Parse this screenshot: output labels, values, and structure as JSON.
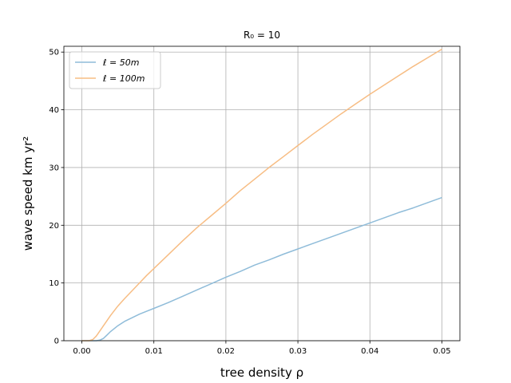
{
  "chart_data": {
    "type": "line",
    "title": "R₀ = 10",
    "xlabel": "tree density ρ",
    "ylabel": "wave speed km yr²",
    "xlim": [
      -0.0025,
      0.0525
    ],
    "ylim": [
      0,
      51
    ],
    "xticks": [
      0.0,
      0.01,
      0.02,
      0.03,
      0.04,
      0.05
    ],
    "xtick_labels": [
      "0.00",
      "0.01",
      "0.02",
      "0.03",
      "0.04",
      "0.05"
    ],
    "yticks": [
      0,
      10,
      20,
      30,
      40,
      50
    ],
    "ytick_labels": [
      "0",
      "10",
      "20",
      "30",
      "40",
      "50"
    ],
    "grid": true,
    "legend_position": "top-left",
    "series": [
      {
        "name": "ℓ = 50m",
        "color": "#8fbcd9",
        "x": [
          0.0,
          0.001,
          0.002,
          0.0025,
          0.003,
          0.0035,
          0.004,
          0.005,
          0.006,
          0.007,
          0.008,
          0.009,
          0.01,
          0.012,
          0.014,
          0.016,
          0.018,
          0.02,
          0.022,
          0.024,
          0.026,
          0.028,
          0.03,
          0.032,
          0.034,
          0.036,
          0.038,
          0.04,
          0.042,
          0.044,
          0.046,
          0.048,
          0.05
        ],
        "values": [
          0,
          0,
          0,
          0.1,
          0.4,
          1.0,
          1.6,
          2.6,
          3.4,
          4.0,
          4.6,
          5.1,
          5.6,
          6.6,
          7.7,
          8.8,
          9.9,
          11.0,
          12.0,
          13.1,
          14.0,
          15.0,
          15.9,
          16.8,
          17.7,
          18.6,
          19.5,
          20.4,
          21.3,
          22.2,
          23.0,
          23.9,
          24.8
        ]
      },
      {
        "name": "ℓ = 100m",
        "color": "#f7bd84",
        "x": [
          0.0,
          0.001,
          0.0015,
          0.002,
          0.003,
          0.004,
          0.005,
          0.006,
          0.007,
          0.008,
          0.009,
          0.01,
          0.012,
          0.014,
          0.016,
          0.018,
          0.02,
          0.022,
          0.024,
          0.026,
          0.028,
          0.03,
          0.032,
          0.034,
          0.036,
          0.038,
          0.04,
          0.042,
          0.044,
          0.046,
          0.048,
          0.05
        ],
        "values": [
          0,
          0,
          0.2,
          0.8,
          2.6,
          4.4,
          6.0,
          7.4,
          8.7,
          10.0,
          11.3,
          12.5,
          14.9,
          17.3,
          19.6,
          21.7,
          23.8,
          26.0,
          28.0,
          30.0,
          31.9,
          33.8,
          35.7,
          37.5,
          39.3,
          41.0,
          42.7,
          44.3,
          45.9,
          47.5,
          49.0,
          50.5
        ]
      }
    ]
  }
}
